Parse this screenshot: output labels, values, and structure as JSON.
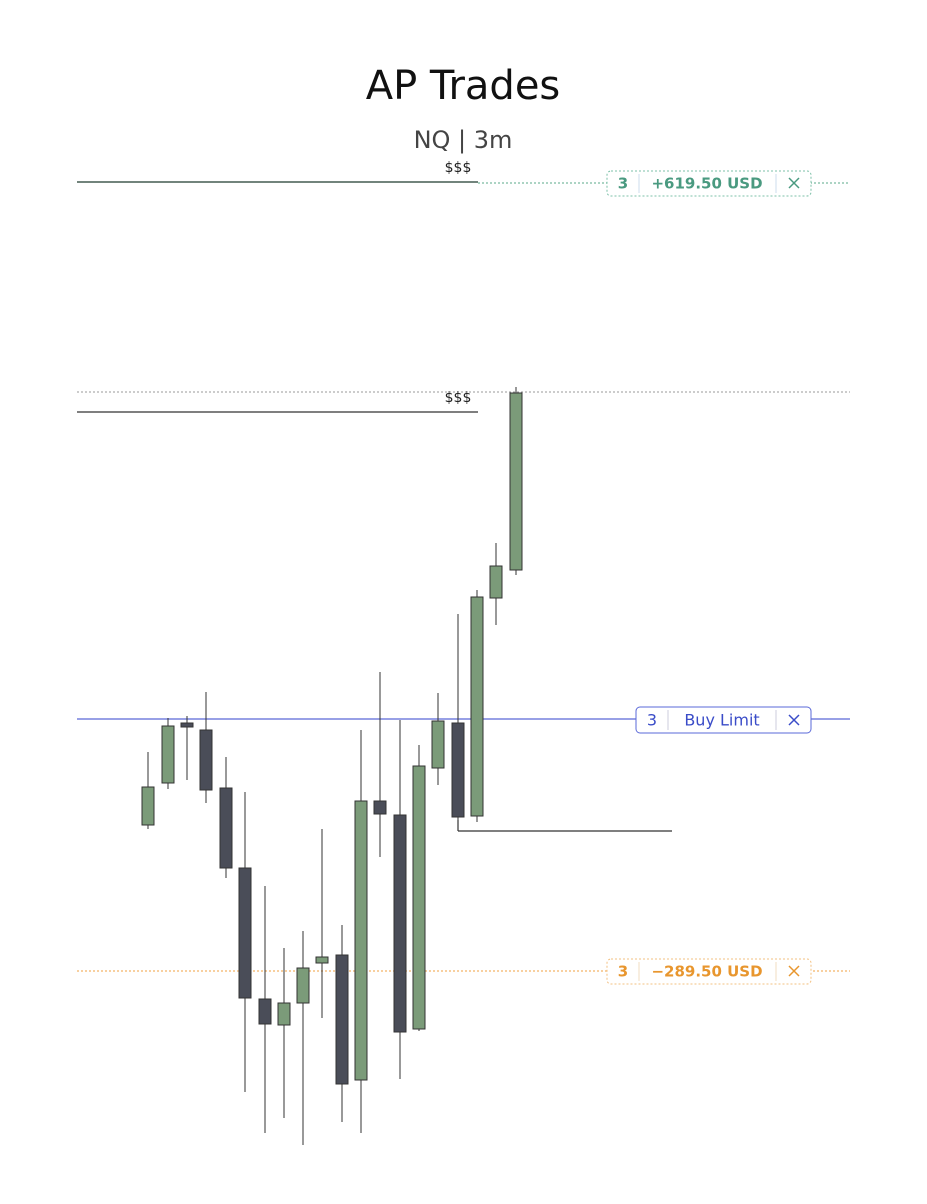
{
  "header": {
    "title": "AP Trades",
    "subtitle": "NQ | 3m"
  },
  "levels": [
    {
      "label": "$$$"
    },
    {
      "label": "$$$"
    }
  ],
  "orders": [
    {
      "quantity": 3,
      "text": "+619.50 USD"
    },
    {
      "quantity": 3,
      "text": "Buy Limit"
    },
    {
      "quantity": 3,
      "text": "−289.50 USD"
    }
  ]
}
